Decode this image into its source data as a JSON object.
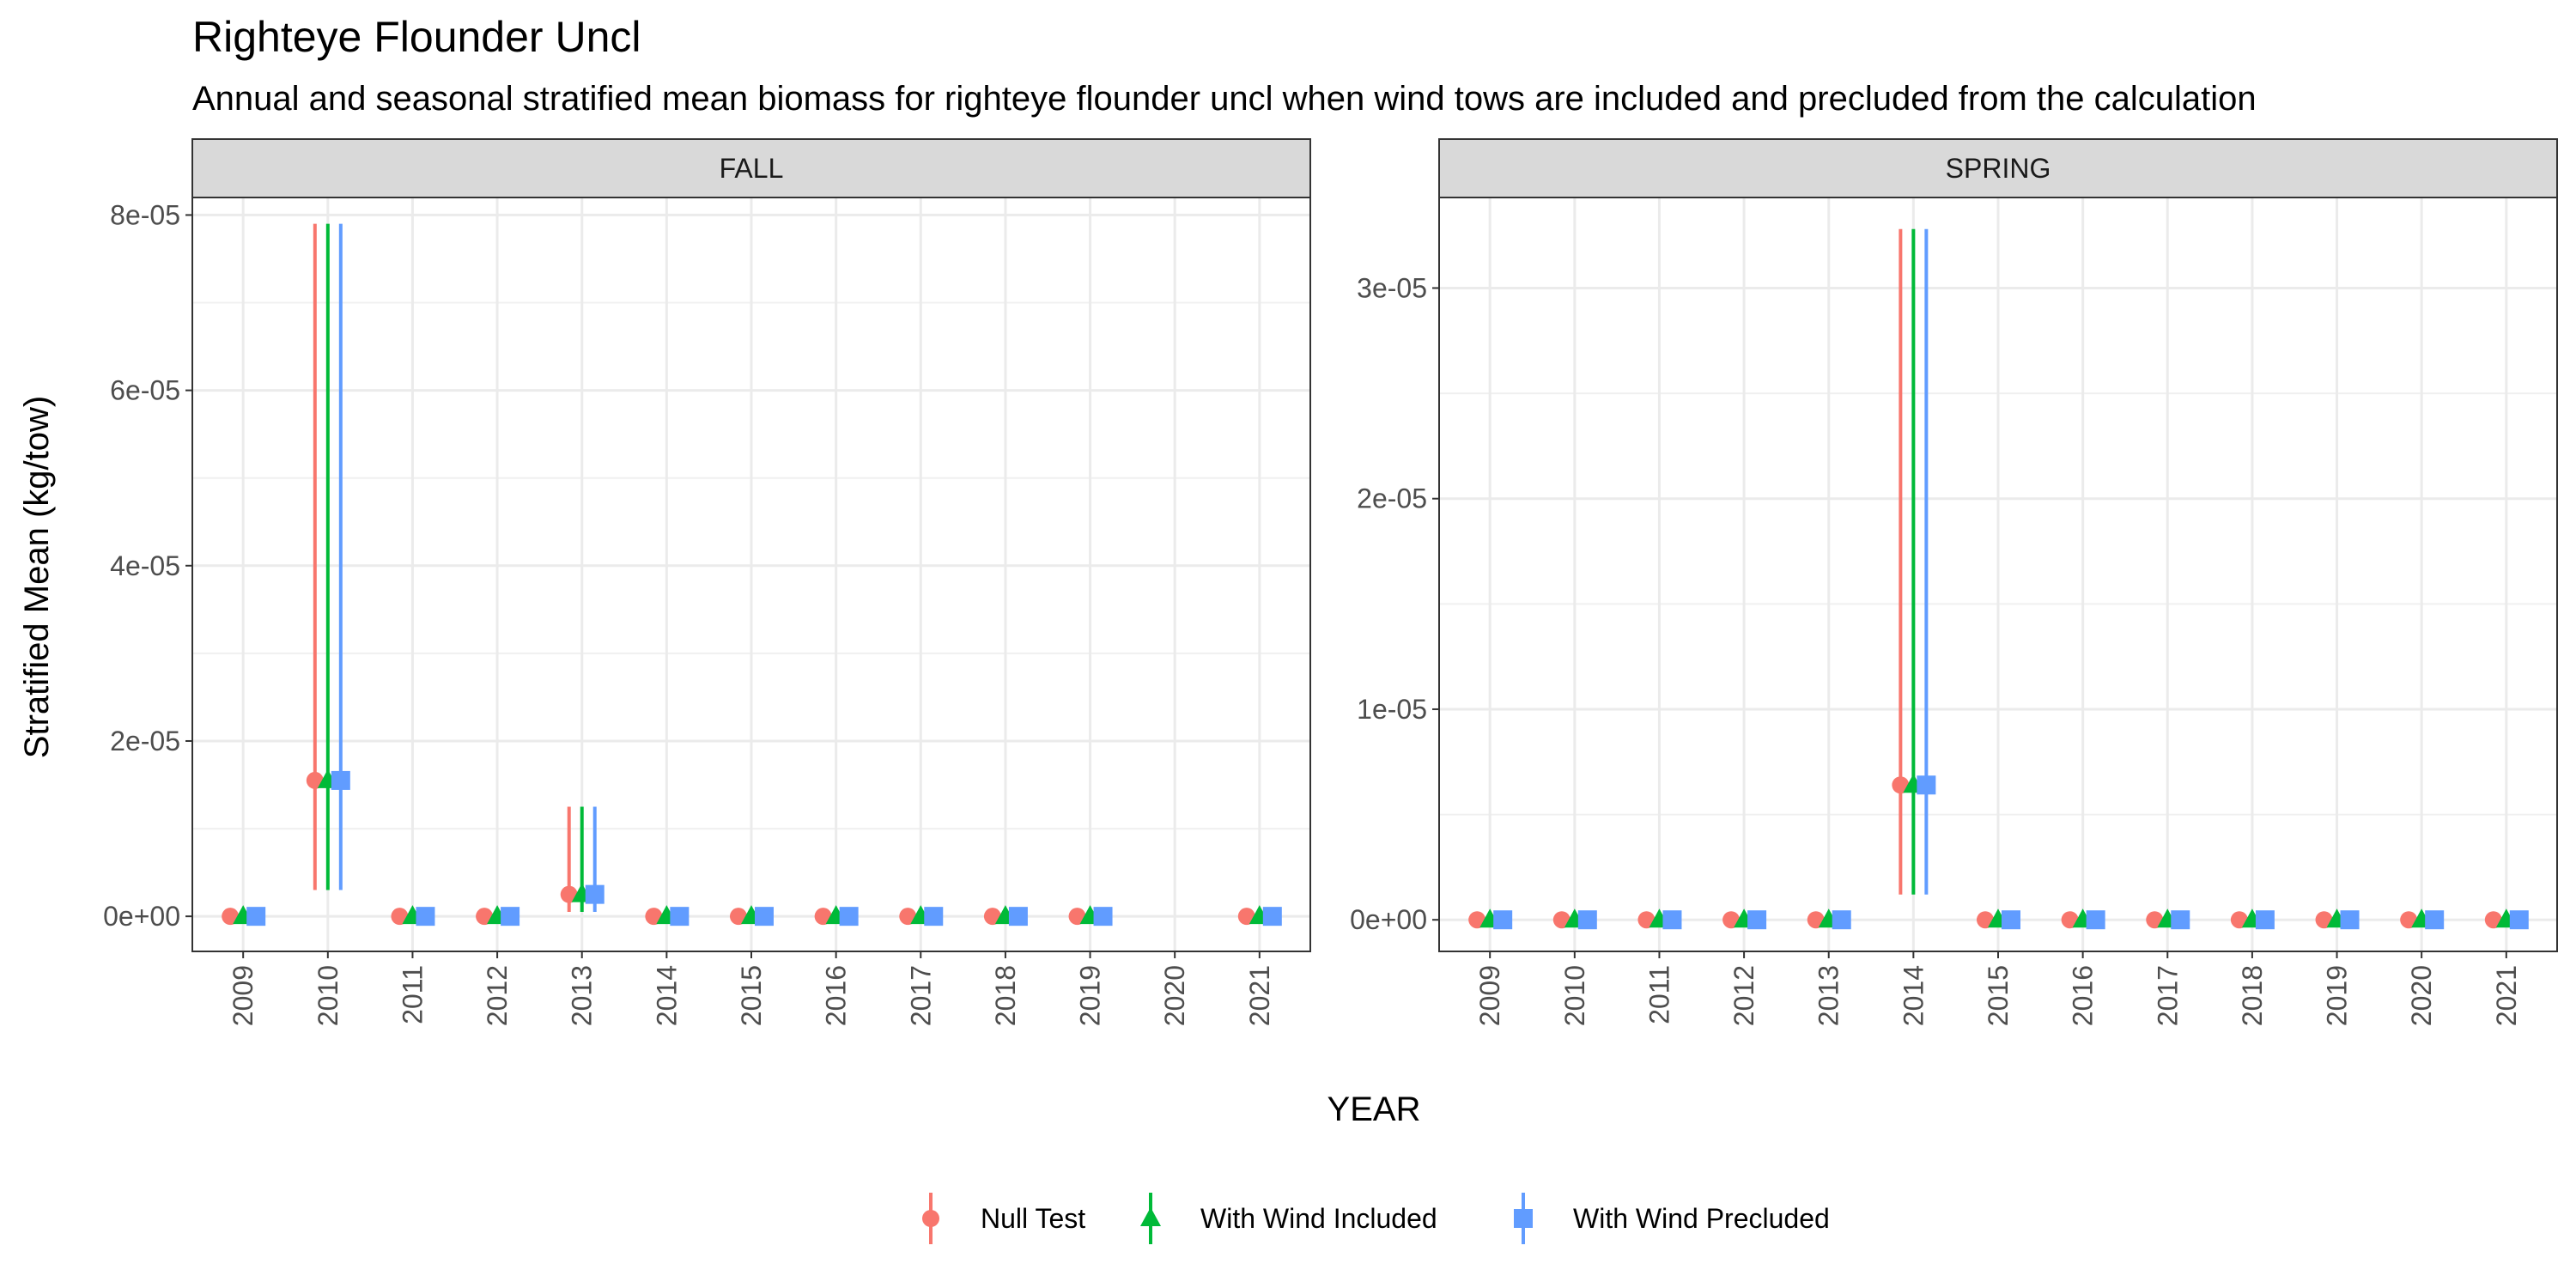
{
  "title": "Righteye Flounder Uncl",
  "subtitle": "Annual and seasonal stratified mean biomass for righteye flounder uncl when wind tows are included and precluded from the calculation",
  "chart_data": {
    "type": "scatter",
    "xlabel": "YEAR",
    "ylabel": "Stratified Mean (kg/tow)",
    "x_ticks": [
      "2009",
      "2010",
      "2011",
      "2012",
      "2013",
      "2014",
      "2015",
      "2016",
      "2017",
      "2018",
      "2019",
      "2020",
      "2021"
    ],
    "legend": {
      "placement": "bottom",
      "entries": [
        {
          "name": "Null Test",
          "color": "#F8766D",
          "shape": "circle"
        },
        {
          "name": "With Wind Included",
          "color": "#00BA38",
          "shape": "triangle"
        },
        {
          "name": "With Wind Precluded",
          "color": "#619CFF",
          "shape": "square"
        }
      ]
    },
    "grid": true,
    "panels": [
      {
        "label": "FALL",
        "ylim": [
          -4e-06,
          8.2e-05
        ],
        "y_ticks": [
          0,
          2e-05,
          4e-05,
          6e-05,
          8e-05
        ],
        "y_tick_labels": [
          "0e+00",
          "2e-05",
          "4e-05",
          "6e-05",
          "8e-05"
        ],
        "series": [
          {
            "name": "Null Test",
            "points": [
              {
                "x": "2009",
                "y": 0,
                "lo": 0,
                "hi": 0
              },
              {
                "x": "2010",
                "y": 1.55e-05,
                "lo": 3e-06,
                "hi": 7.9e-05
              },
              {
                "x": "2011",
                "y": 0,
                "lo": 0,
                "hi": 0
              },
              {
                "x": "2012",
                "y": 0,
                "lo": 0,
                "hi": 0
              },
              {
                "x": "2013",
                "y": 2.5e-06,
                "lo": 5e-07,
                "hi": 1.25e-05
              },
              {
                "x": "2014",
                "y": 0,
                "lo": 0,
                "hi": 0
              },
              {
                "x": "2015",
                "y": 0,
                "lo": 0,
                "hi": 0
              },
              {
                "x": "2016",
                "y": 0,
                "lo": 0,
                "hi": 0
              },
              {
                "x": "2017",
                "y": 0,
                "lo": 0,
                "hi": 0
              },
              {
                "x": "2018",
                "y": 0,
                "lo": 0,
                "hi": 0
              },
              {
                "x": "2019",
                "y": 0,
                "lo": 0,
                "hi": 0
              },
              {
                "x": "2021",
                "y": 0,
                "lo": 0,
                "hi": 0
              }
            ]
          },
          {
            "name": "With Wind Included",
            "points": [
              {
                "x": "2009",
                "y": 0,
                "lo": 0,
                "hi": 0
              },
              {
                "x": "2010",
                "y": 1.55e-05,
                "lo": 3e-06,
                "hi": 7.9e-05
              },
              {
                "x": "2011",
                "y": 0,
                "lo": 0,
                "hi": 0
              },
              {
                "x": "2012",
                "y": 0,
                "lo": 0,
                "hi": 0
              },
              {
                "x": "2013",
                "y": 2.5e-06,
                "lo": 5e-07,
                "hi": 1.25e-05
              },
              {
                "x": "2014",
                "y": 0,
                "lo": 0,
                "hi": 0
              },
              {
                "x": "2015",
                "y": 0,
                "lo": 0,
                "hi": 0
              },
              {
                "x": "2016",
                "y": 0,
                "lo": 0,
                "hi": 0
              },
              {
                "x": "2017",
                "y": 0,
                "lo": 0,
                "hi": 0
              },
              {
                "x": "2018",
                "y": 0,
                "lo": 0,
                "hi": 0
              },
              {
                "x": "2019",
                "y": 0,
                "lo": 0,
                "hi": 0
              },
              {
                "x": "2021",
                "y": 0,
                "lo": 0,
                "hi": 0
              }
            ]
          },
          {
            "name": "With Wind Precluded",
            "points": [
              {
                "x": "2009",
                "y": 0,
                "lo": 0,
                "hi": 0
              },
              {
                "x": "2010",
                "y": 1.55e-05,
                "lo": 3e-06,
                "hi": 7.9e-05
              },
              {
                "x": "2011",
                "y": 0,
                "lo": 0,
                "hi": 0
              },
              {
                "x": "2012",
                "y": 0,
                "lo": 0,
                "hi": 0
              },
              {
                "x": "2013",
                "y": 2.5e-06,
                "lo": 5e-07,
                "hi": 1.25e-05
              },
              {
                "x": "2014",
                "y": 0,
                "lo": 0,
                "hi": 0
              },
              {
                "x": "2015",
                "y": 0,
                "lo": 0,
                "hi": 0
              },
              {
                "x": "2016",
                "y": 0,
                "lo": 0,
                "hi": 0
              },
              {
                "x": "2017",
                "y": 0,
                "lo": 0,
                "hi": 0
              },
              {
                "x": "2018",
                "y": 0,
                "lo": 0,
                "hi": 0
              },
              {
                "x": "2019",
                "y": 0,
                "lo": 0,
                "hi": 0
              },
              {
                "x": "2021",
                "y": 0,
                "lo": 0,
                "hi": 0
              }
            ]
          }
        ]
      },
      {
        "label": "SPRING",
        "ylim": [
          -1.5e-06,
          3.43e-05
        ],
        "y_ticks": [
          0,
          1e-05,
          2e-05,
          3e-05
        ],
        "y_tick_labels": [
          "0e+00",
          "1e-05",
          "2e-05",
          "3e-05"
        ],
        "series": [
          {
            "name": "Null Test",
            "points": [
              {
                "x": "2009",
                "y": 0,
                "lo": 0,
                "hi": 0
              },
              {
                "x": "2010",
                "y": 0,
                "lo": 0,
                "hi": 0
              },
              {
                "x": "2011",
                "y": 0,
                "lo": 0,
                "hi": 0
              },
              {
                "x": "2012",
                "y": 0,
                "lo": 0,
                "hi": 0
              },
              {
                "x": "2013",
                "y": 0,
                "lo": 0,
                "hi": 0
              },
              {
                "x": "2014",
                "y": 6.4e-06,
                "lo": 1.2e-06,
                "hi": 3.28e-05
              },
              {
                "x": "2015",
                "y": 0,
                "lo": 0,
                "hi": 0
              },
              {
                "x": "2016",
                "y": 0,
                "lo": 0,
                "hi": 0
              },
              {
                "x": "2017",
                "y": 0,
                "lo": 0,
                "hi": 0
              },
              {
                "x": "2018",
                "y": 0,
                "lo": 0,
                "hi": 0
              },
              {
                "x": "2019",
                "y": 0,
                "lo": 0,
                "hi": 0
              },
              {
                "x": "2020",
                "y": 0,
                "lo": 0,
                "hi": 0
              },
              {
                "x": "2021",
                "y": 0,
                "lo": 0,
                "hi": 0
              }
            ]
          },
          {
            "name": "With Wind Included",
            "points": [
              {
                "x": "2009",
                "y": 0,
                "lo": 0,
                "hi": 0
              },
              {
                "x": "2010",
                "y": 0,
                "lo": 0,
                "hi": 0
              },
              {
                "x": "2011",
                "y": 0,
                "lo": 0,
                "hi": 0
              },
              {
                "x": "2012",
                "y": 0,
                "lo": 0,
                "hi": 0
              },
              {
                "x": "2013",
                "y": 0,
                "lo": 0,
                "hi": 0
              },
              {
                "x": "2014",
                "y": 6.4e-06,
                "lo": 1.2e-06,
                "hi": 3.28e-05
              },
              {
                "x": "2015",
                "y": 0,
                "lo": 0,
                "hi": 0
              },
              {
                "x": "2016",
                "y": 0,
                "lo": 0,
                "hi": 0
              },
              {
                "x": "2017",
                "y": 0,
                "lo": 0,
                "hi": 0
              },
              {
                "x": "2018",
                "y": 0,
                "lo": 0,
                "hi": 0
              },
              {
                "x": "2019",
                "y": 0,
                "lo": 0,
                "hi": 0
              },
              {
                "x": "2020",
                "y": 0,
                "lo": 0,
                "hi": 0
              },
              {
                "x": "2021",
                "y": 0,
                "lo": 0,
                "hi": 0
              }
            ]
          },
          {
            "name": "With Wind Precluded",
            "points": [
              {
                "x": "2009",
                "y": 0,
                "lo": 0,
                "hi": 0
              },
              {
                "x": "2010",
                "y": 0,
                "lo": 0,
                "hi": 0
              },
              {
                "x": "2011",
                "y": 0,
                "lo": 0,
                "hi": 0
              },
              {
                "x": "2012",
                "y": 0,
                "lo": 0,
                "hi": 0
              },
              {
                "x": "2013",
                "y": 0,
                "lo": 0,
                "hi": 0
              },
              {
                "x": "2014",
                "y": 6.4e-06,
                "lo": 1.2e-06,
                "hi": 3.28e-05
              },
              {
                "x": "2015",
                "y": 0,
                "lo": 0,
                "hi": 0
              },
              {
                "x": "2016",
                "y": 0,
                "lo": 0,
                "hi": 0
              },
              {
                "x": "2017",
                "y": 0,
                "lo": 0,
                "hi": 0
              },
              {
                "x": "2018",
                "y": 0,
                "lo": 0,
                "hi": 0
              },
              {
                "x": "2019",
                "y": 0,
                "lo": 0,
                "hi": 0
              },
              {
                "x": "2020",
                "y": 0,
                "lo": 0,
                "hi": 0
              },
              {
                "x": "2021",
                "y": 0,
                "lo": 0,
                "hi": 0
              }
            ]
          }
        ]
      }
    ]
  }
}
